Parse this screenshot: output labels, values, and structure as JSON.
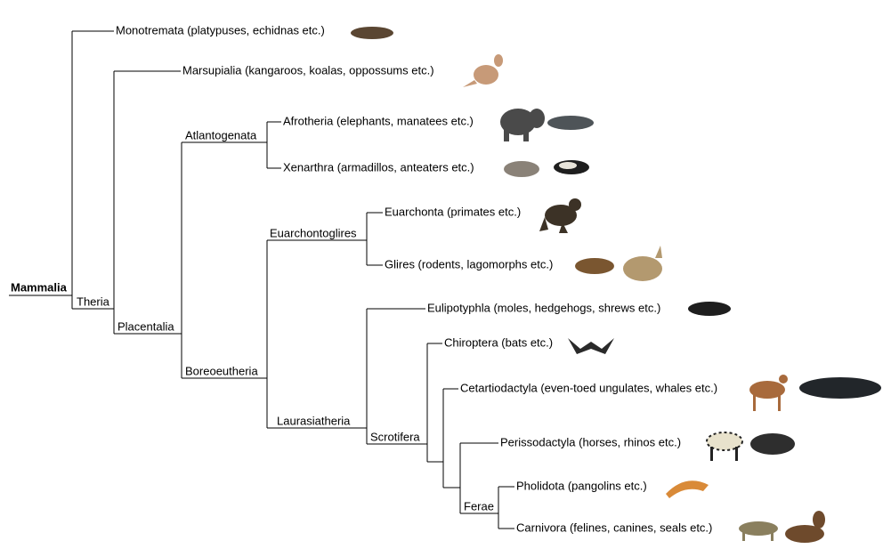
{
  "root": "Mammalia",
  "nodes": [
    {
      "label": "Monotremata (platypuses, echidnas etc.)"
    },
    {
      "label": "Theria"
    },
    {
      "label": "Marsupialia (kangaroos, koalas, oppossums etc.)"
    },
    {
      "label": "Placentalia"
    },
    {
      "label": "Atlantogenata"
    },
    {
      "label": "Afrotheria (elephants, manatees etc.)"
    },
    {
      "label": "Xenarthra (armadillos, anteaters etc.)"
    },
    {
      "label": "Boreoeutheria"
    },
    {
      "label": "Euarchontoglires"
    },
    {
      "label": "Euarchonta (primates etc.)"
    },
    {
      "label": "Glires (rodents, lagomorphs etc.)"
    },
    {
      "label": "Laurasiatheria"
    },
    {
      "label": "Eulipotyphla (moles, hedgehogs, shrews etc.)"
    },
    {
      "label": "Scrotifera"
    },
    {
      "label": "Chiroptera (bats etc.)"
    },
    {
      "label": "Cetartiodactyla (even-toed ungulates, whales etc.)"
    },
    {
      "label": "Perissodactyla (horses, rhinos etc.)"
    },
    {
      "label": "Ferae"
    },
    {
      "label": "Pholidota (pangolins etc.)"
    },
    {
      "label": "Carnivora (felines, canines, seals etc.)"
    }
  ]
}
